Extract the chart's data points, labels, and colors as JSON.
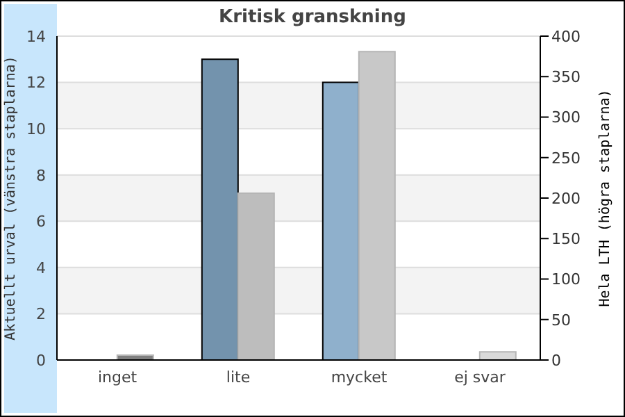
{
  "chart_data": {
    "type": "bar",
    "title": "Kritisk granskning",
    "ylabel": "Aktuellt urval (vänstra staplarna)",
    "y2label": "Hela LTH (högra staplarna)",
    "categories": [
      "inget",
      "lite",
      "mycket",
      "ej svar"
    ],
    "series": [
      {
        "colors": [
          "#7393ad",
          "#7393ad",
          "#8fb0cc",
          "#8fb0cc"
        ],
        "values": [
          0,
          13,
          12,
          0
        ]
      },
      {
        "axis": "y2",
        "colors": [
          "#808080",
          "#bdbdbd",
          "#c8c8c8",
          "#d9d9d9"
        ],
        "values": [
          6,
          206,
          381,
          10
        ]
      }
    ],
    "ylim": [
      0,
      14
    ],
    "yticks": [
      0,
      2,
      4,
      6,
      8,
      10,
      12,
      14
    ],
    "y2lim": [
      0,
      400
    ],
    "y2ticks": [
      0,
      50,
      100,
      150,
      200,
      250,
      300,
      350,
      400
    ],
    "grid": "y"
  }
}
